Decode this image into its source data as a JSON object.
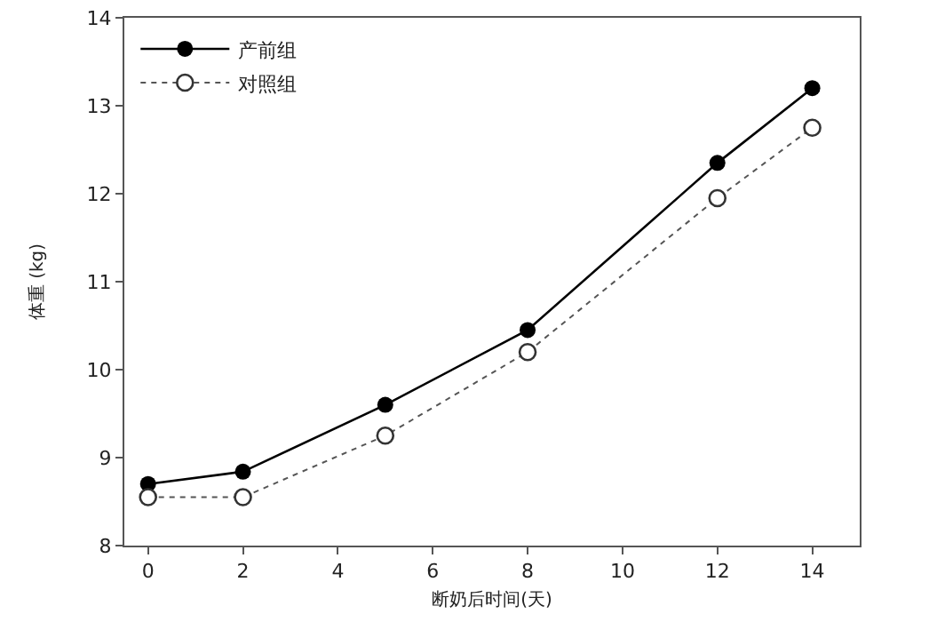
{
  "chart_data": {
    "type": "line",
    "xlabel": "断奶后时间(天)",
    "ylabel": "体重 (kg)",
    "x": [
      0,
      2,
      5,
      8,
      12,
      14
    ],
    "series": [
      {
        "name": "产前组",
        "color": "#000000",
        "line_style": "solid",
        "marker": "circle",
        "values": [
          8.7,
          8.84,
          9.6,
          10.45,
          12.35,
          13.2
        ]
      },
      {
        "name": "对照组",
        "color": "#555555",
        "line_style": "dotted",
        "marker": "circle-open",
        "values": [
          8.55,
          8.55,
          9.25,
          10.2,
          11.95,
          12.75
        ]
      }
    ],
    "xlim": [
      -0.5,
      15
    ],
    "xticks": [
      0,
      2,
      4,
      6,
      8,
      10,
      12,
      14
    ],
    "ylim": [
      8,
      14
    ],
    "yticks": [
      8,
      9,
      10,
      11,
      12,
      13,
      14
    ],
    "grid": false,
    "legend": "top left"
  }
}
